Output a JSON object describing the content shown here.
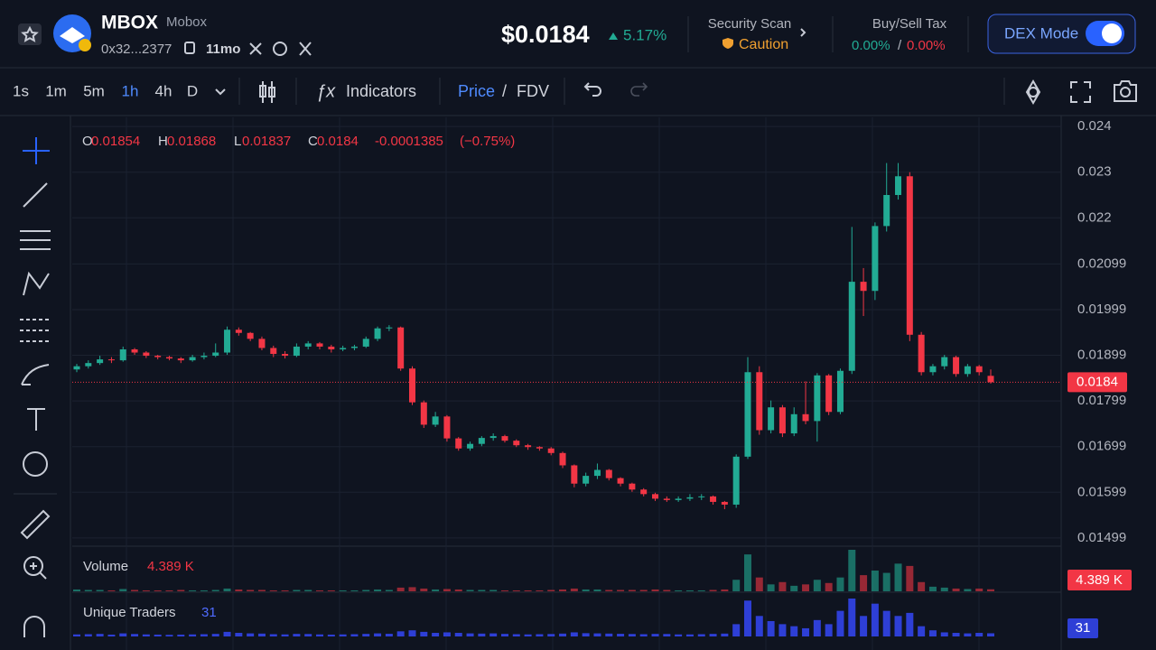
{
  "header": {
    "symbol": "MBOX",
    "name": "Mobox",
    "address": "0x32...2377",
    "age": "11mo",
    "price": "$0.0184",
    "change": "5.17%",
    "security_label": "Security Scan",
    "security_status": "Caution",
    "tax_label": "Buy/Sell Tax",
    "buy_tax": "0.00%",
    "tax_separator": "/",
    "sell_tax": "0.00%",
    "mode_button": "DEX Mode"
  },
  "toolbar": {
    "intervals": [
      "1s",
      "1m",
      "5m",
      "1h",
      "4h",
      "D"
    ],
    "indicators": "Indicators",
    "price": "Price",
    "separator": "/",
    "fdv": "FDV"
  },
  "chart_data": {
    "type": "candlestick",
    "up_color": "#22ab94",
    "down_color": "#f23645",
    "grid": true,
    "ylim": [
      0.01481,
      0.0242
    ],
    "yticks": [
      0.01499,
      0.01599,
      0.01699,
      0.01799,
      0.01899,
      0.01999,
      0.02099,
      0.022,
      0.023,
      0.024
    ],
    "legend": {
      "open": "O",
      "high": "H",
      "low": "L",
      "close": "C",
      "change": "-0.0001385",
      "change_percent": "(−0.75%)"
    },
    "candles": [
      [
        0.01868,
        0.0188,
        0.01862,
        0.01875
      ],
      [
        0.01875,
        0.01888,
        0.0187,
        0.01882
      ],
      [
        0.01882,
        0.01898,
        0.01878,
        0.0189
      ],
      [
        0.0189,
        0.01895,
        0.01882,
        0.01888
      ],
      [
        0.01888,
        0.01918,
        0.01885,
        0.01912
      ],
      [
        0.01912,
        0.01915,
        0.019,
        0.01905
      ],
      [
        0.01905,
        0.01908,
        0.01893,
        0.01898
      ],
      [
        0.01898,
        0.019,
        0.0189,
        0.01895
      ],
      [
        0.01895,
        0.01898,
        0.01888,
        0.01892
      ],
      [
        0.01892,
        0.01895,
        0.01882,
        0.01888
      ],
      [
        0.01888,
        0.019,
        0.01885,
        0.01895
      ],
      [
        0.01895,
        0.01905,
        0.0189,
        0.01898
      ],
      [
        0.01898,
        0.01925,
        0.01895,
        0.01905
      ],
      [
        0.01905,
        0.01962,
        0.019,
        0.01955
      ],
      [
        0.01955,
        0.0196,
        0.01942,
        0.01948
      ],
      [
        0.01948,
        0.0195,
        0.0193,
        0.01935
      ],
      [
        0.01935,
        0.0194,
        0.0191,
        0.01915
      ],
      [
        0.01915,
        0.0192,
        0.01895,
        0.01902
      ],
      [
        0.01902,
        0.01908,
        0.01892,
        0.01898
      ],
      [
        0.01898,
        0.01925,
        0.01895,
        0.01918
      ],
      [
        0.01918,
        0.0193,
        0.01912,
        0.01925
      ],
      [
        0.01925,
        0.01928,
        0.01912,
        0.01918
      ],
      [
        0.01918,
        0.01922,
        0.01905,
        0.01912
      ],
      [
        0.01912,
        0.0192,
        0.01908,
        0.01915
      ],
      [
        0.01915,
        0.01922,
        0.0191,
        0.01918
      ],
      [
        0.01918,
        0.0194,
        0.01915,
        0.01935
      ],
      [
        0.01935,
        0.01962,
        0.0193,
        0.01958
      ],
      [
        0.01958,
        0.01965,
        0.01952,
        0.0196
      ],
      [
        0.0196,
        0.01962,
        0.01865,
        0.0187
      ],
      [
        0.0187,
        0.01875,
        0.0179,
        0.01796
      ],
      [
        0.01796,
        0.018,
        0.0174,
        0.01747
      ],
      [
        0.01747,
        0.01775,
        0.01742,
        0.01765
      ],
      [
        0.01765,
        0.01768,
        0.0171,
        0.01717
      ],
      [
        0.01717,
        0.0172,
        0.0169,
        0.01695
      ],
      [
        0.01695,
        0.0171,
        0.0169,
        0.01705
      ],
      [
        0.01705,
        0.01722,
        0.017,
        0.01718
      ],
      [
        0.01718,
        0.01728,
        0.01712,
        0.01722
      ],
      [
        0.01722,
        0.01725,
        0.01708,
        0.01712
      ],
      [
        0.01712,
        0.01715,
        0.01698,
        0.01702
      ],
      [
        0.01702,
        0.01705,
        0.01692,
        0.01698
      ],
      [
        0.01698,
        0.017,
        0.0169,
        0.01695
      ],
      [
        0.01695,
        0.01698,
        0.0168,
        0.01685
      ],
      [
        0.01685,
        0.01688,
        0.01652,
        0.01658
      ],
      [
        0.01658,
        0.0166,
        0.0161,
        0.01618
      ],
      [
        0.01618,
        0.01642,
        0.01612,
        0.01635
      ],
      [
        0.01635,
        0.01662,
        0.01628,
        0.01648
      ],
      [
        0.01648,
        0.0165,
        0.01625,
        0.0163
      ],
      [
        0.0163,
        0.01632,
        0.01612,
        0.01618
      ],
      [
        0.01618,
        0.0162,
        0.016,
        0.01605
      ],
      [
        0.01605,
        0.01608,
        0.0159,
        0.01595
      ],
      [
        0.01595,
        0.01598,
        0.0158,
        0.01585
      ],
      [
        0.01585,
        0.0159,
        0.01578,
        0.01582
      ],
      [
        0.01582,
        0.0159,
        0.01578,
        0.01585
      ],
      [
        0.01585,
        0.01595,
        0.0158,
        0.01588
      ],
      [
        0.01588,
        0.01595,
        0.01582,
        0.0159
      ],
      [
        0.0159,
        0.01592,
        0.01572,
        0.01578
      ],
      [
        0.01578,
        0.0158,
        0.01562,
        0.01572
      ],
      [
        0.01572,
        0.01682,
        0.01565,
        0.01677
      ],
      [
        0.01677,
        0.01895,
        0.01672,
        0.01862
      ],
      [
        0.01862,
        0.01875,
        0.01725,
        0.01735
      ],
      [
        0.01735,
        0.018,
        0.01728,
        0.01785
      ],
      [
        0.01785,
        0.0179,
        0.0172,
        0.01728
      ],
      [
        0.01728,
        0.01785,
        0.01722,
        0.0177
      ],
      [
        0.0177,
        0.01842,
        0.01748,
        0.01755
      ],
      [
        0.01755,
        0.0186,
        0.0171,
        0.01855
      ],
      [
        0.01855,
        0.01858,
        0.01768,
        0.01775
      ],
      [
        0.01775,
        0.0187,
        0.0177,
        0.01865
      ],
      [
        0.01865,
        0.0218,
        0.01858,
        0.0206
      ],
      [
        0.0206,
        0.0209,
        0.01985,
        0.0204
      ],
      [
        0.0204,
        0.0219,
        0.0202,
        0.02182
      ],
      [
        0.02182,
        0.0232,
        0.0217,
        0.0225
      ],
      [
        0.0225,
        0.0232,
        0.0224,
        0.02291
      ],
      [
        0.02291,
        0.023,
        0.0193,
        0.01944
      ],
      [
        0.01944,
        0.0195,
        0.01855,
        0.01862
      ],
      [
        0.01862,
        0.0188,
        0.01855,
        0.01875
      ],
      [
        0.01875,
        0.019,
        0.01868,
        0.01895
      ],
      [
        0.01895,
        0.01898,
        0.01852,
        0.01858
      ],
      [
        0.01858,
        0.0188,
        0.01852,
        0.01875
      ],
      [
        0.01875,
        0.01878,
        0.01855,
        0.01862
      ],
      [
        0.01854,
        0.01868,
        0.01837,
        0.0184
      ]
    ],
    "volume": {
      "name": "Volume",
      "last_label": "4.389 K",
      "values": [
        4,
        3,
        3,
        2,
        5,
        3,
        2,
        2,
        2,
        3,
        2,
        2,
        3,
        6,
        4,
        3,
        3,
        2,
        2,
        3,
        3,
        2,
        2,
        2,
        2,
        3,
        4,
        3,
        8,
        9,
        6,
        4,
        5,
        4,
        3,
        3,
        3,
        2,
        2,
        2,
        2,
        3,
        4,
        6,
        4,
        4,
        3,
        3,
        3,
        3,
        4,
        3,
        2,
        2,
        2,
        3,
        4,
        25,
        80,
        30,
        15,
        20,
        12,
        15,
        25,
        18,
        30,
        90,
        35,
        45,
        40,
        60,
        55,
        20,
        10,
        8,
        6,
        5,
        6,
        4.389
      ]
    },
    "traders": {
      "name": "Unique Traders",
      "values": [
        20,
        22,
        25,
        18,
        30,
        24,
        20,
        18,
        16,
        18,
        20,
        22,
        25,
        45,
        35,
        30,
        28,
        22,
        20,
        25,
        24,
        20,
        18,
        20,
        22,
        25,
        30,
        26,
        50,
        60,
        45,
        35,
        40,
        35,
        30,
        28,
        30,
        25,
        22,
        20,
        22,
        24,
        28,
        40,
        32,
        30,
        28,
        26,
        24,
        22,
        25,
        24,
        20,
        20,
        22,
        25,
        28,
        120,
        350,
        200,
        150,
        120,
        100,
        80,
        160,
        120,
        250,
        370,
        200,
        320,
        250,
        200,
        230,
        100,
        60,
        40,
        35,
        30,
        35,
        31
      ]
    }
  }
}
